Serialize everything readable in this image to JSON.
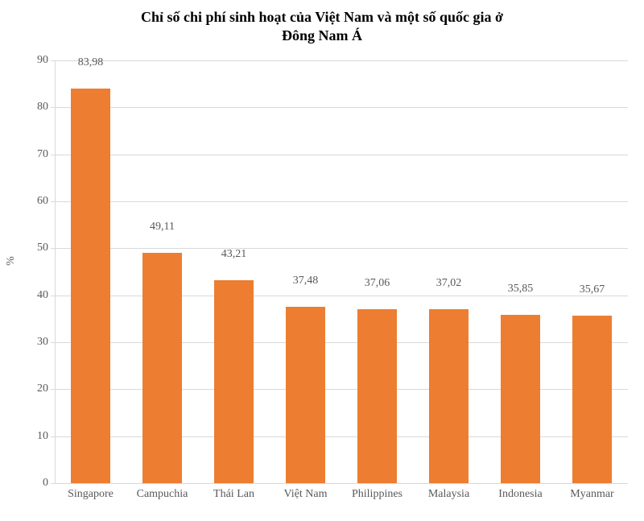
{
  "chart": {
    "type": "bar",
    "title_line1": "Chỉ số chi phí sinh hoạt của Việt Nam và một số quốc gia ở",
    "title_line2": "Đông Nam Á",
    "title_fontsize": 18,
    "title_color": "#000000",
    "ylabel": "%",
    "ylabel_color": "#595959",
    "background_color": "#ffffff",
    "grid_color": "#d9d9d9",
    "axis_color": "#d9d9d9",
    "tick_label_color": "#595959",
    "value_label_color": "#595959",
    "label_fontsize": 14,
    "ylim": [
      0,
      90
    ],
    "ytick_step": 10,
    "yticks": [
      0,
      10,
      20,
      30,
      40,
      50,
      60,
      70,
      80,
      90
    ],
    "bar_color": "#ed7d31",
    "bar_width": 0.55,
    "categories": [
      "Singapore",
      "Campuchia",
      "Thái Lan",
      "Việt Nam",
      "Philippines",
      "Malaysia",
      "Indonesia",
      "Myanmar"
    ],
    "values": [
      83.98,
      49.11,
      43.21,
      37.48,
      37.06,
      37.02,
      35.85,
      35.67
    ],
    "value_labels": [
      "83,98",
      "49,11",
      "43,21",
      "37,48",
      "37,06",
      "37,02",
      "35,85",
      "35,67"
    ]
  }
}
